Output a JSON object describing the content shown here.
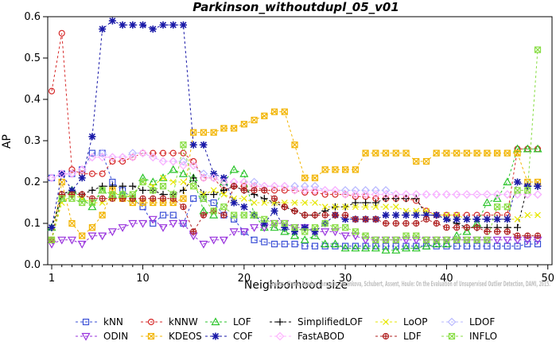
{
  "chart_data": {
    "type": "line",
    "title": "Parkinson_withoutdupl_05_v01",
    "xlabel": "Neighborhood size",
    "ylabel": "AP",
    "xlim": [
      0,
      50
    ],
    "ylim": [
      0,
      0.6
    ],
    "xticks": [
      "1",
      "10",
      "20",
      "30",
      "40",
      "50"
    ],
    "yticks": [
      "0.0",
      "0.1",
      "0.2",
      "0.3",
      "0.4",
      "0.5",
      "0.6"
    ],
    "grid": false,
    "legend_position": "bottom",
    "credit": "Campos, Zimek, Sander, Campello, Micenkova, Schubert, Assent, Houle: On the Evaluation of Unsupervised Outlier Detection, DAMI, 2015.",
    "series": [
      {
        "name": "kNN",
        "color": "#3a4fd6",
        "marker": "square",
        "values": [
          0.21,
          0.22,
          0.22,
          0.23,
          0.27,
          0.27,
          0.2,
          0.18,
          0.16,
          0.14,
          0.1,
          0.12,
          0.12,
          0.1,
          0.16,
          0.16,
          0.15,
          0.12,
          0.11,
          0.08,
          0.06,
          0.055,
          0.05,
          0.05,
          0.05,
          0.045,
          0.045,
          0.045,
          0.045,
          0.045,
          0.045,
          0.045,
          0.045,
          0.045,
          0.045,
          0.045,
          0.045,
          0.045,
          0.045,
          0.045,
          0.045,
          0.045,
          0.045,
          0.045,
          0.045,
          0.045,
          0.045,
          0.05,
          0.05
        ]
      },
      {
        "name": "kNNW",
        "color": "#d62a2a",
        "marker": "circle",
        "values": [
          0.42,
          0.56,
          0.23,
          0.22,
          0.22,
          0.22,
          0.25,
          0.25,
          0.26,
          0.27,
          0.27,
          0.27,
          0.27,
          0.27,
          0.25,
          0.21,
          0.21,
          0.18,
          0.19,
          0.19,
          0.19,
          0.18,
          0.18,
          0.18,
          0.18,
          0.175,
          0.175,
          0.17,
          0.17,
          0.17,
          0.165,
          0.165,
          0.16,
          0.16,
          0.16,
          0.16,
          0.155,
          0.13,
          0.12,
          0.12,
          0.12,
          0.12,
          0.12,
          0.12,
          0.12,
          0.12,
          0.28,
          0.28,
          0.28
        ]
      },
      {
        "name": "LOF",
        "color": "#2bc42b",
        "marker": "triangle",
        "values": [
          0.09,
          0.16,
          0.18,
          0.16,
          0.14,
          0.18,
          0.17,
          0.17,
          0.16,
          0.21,
          0.2,
          0.21,
          0.23,
          0.22,
          0.21,
          0.13,
          0.12,
          0.2,
          0.23,
          0.22,
          0.12,
          0.09,
          0.09,
          0.08,
          0.07,
          0.06,
          0.07,
          0.05,
          0.05,
          0.04,
          0.04,
          0.04,
          0.04,
          0.035,
          0.035,
          0.04,
          0.04,
          0.045,
          0.05,
          0.05,
          0.07,
          0.08,
          0.1,
          0.15,
          0.16,
          0.2,
          0.28,
          0.28,
          0.28
        ]
      },
      {
        "name": "SimplifiedLOF",
        "color": "#000000",
        "marker": "plus",
        "values": [
          0.09,
          0.17,
          0.18,
          0.17,
          0.18,
          0.19,
          0.19,
          0.19,
          0.19,
          0.18,
          0.18,
          0.17,
          0.17,
          0.18,
          0.21,
          0.17,
          0.17,
          0.18,
          0.19,
          0.18,
          0.17,
          0.16,
          0.15,
          0.14,
          0.13,
          0.12,
          0.12,
          0.13,
          0.14,
          0.14,
          0.15,
          0.15,
          0.15,
          0.16,
          0.16,
          0.16,
          0.16,
          0.12,
          0.12,
          0.11,
          0.1,
          0.09,
          0.09,
          0.09,
          0.09,
          0.09,
          0.09,
          0.19,
          0.19
        ]
      },
      {
        "name": "LoOP",
        "color": "#e6e600",
        "marker": "x",
        "values": [
          0.06,
          0.15,
          0.17,
          0.16,
          0.15,
          0.15,
          0.16,
          0.16,
          0.17,
          0.2,
          0.19,
          0.21,
          0.2,
          0.2,
          0.19,
          0.17,
          0.18,
          0.17,
          0.16,
          0.16,
          0.15,
          0.15,
          0.15,
          0.15,
          0.15,
          0.15,
          0.15,
          0.14,
          0.14,
          0.14,
          0.14,
          0.14,
          0.14,
          0.14,
          0.14,
          0.13,
          0.13,
          0.13,
          0.12,
          0.12,
          0.12,
          0.11,
          0.11,
          0.11,
          0.11,
          0.11,
          0.11,
          0.12,
          0.12
        ]
      },
      {
        "name": "LDOF",
        "color": "#b8b8ff",
        "marker": "diamond",
        "values": [
          0.21,
          0.22,
          0.22,
          0.23,
          0.26,
          0.27,
          0.26,
          0.26,
          0.27,
          0.27,
          0.26,
          0.25,
          0.25,
          0.25,
          0.24,
          0.22,
          0.21,
          0.2,
          0.2,
          0.2,
          0.2,
          0.19,
          0.19,
          0.19,
          0.19,
          0.19,
          0.19,
          0.18,
          0.18,
          0.18,
          0.18,
          0.18,
          0.18,
          0.18,
          0.17,
          0.17,
          0.17,
          0.17,
          0.17,
          0.17,
          0.17,
          0.17,
          0.17,
          0.17,
          0.17,
          0.17,
          0.17,
          0.17,
          0.17
        ]
      },
      {
        "name": "ODIN",
        "color": "#9933dd",
        "marker": "triangle-down",
        "values": [
          0.05,
          0.06,
          0.06,
          0.05,
          0.07,
          0.07,
          0.08,
          0.09,
          0.1,
          0.1,
          0.11,
          0.09,
          0.1,
          0.1,
          0.07,
          0.05,
          0.06,
          0.06,
          0.08,
          0.08,
          0.09,
          0.09,
          0.1,
          0.1,
          0.09,
          0.09,
          0.08,
          0.08,
          0.08,
          0.07,
          0.07,
          0.06,
          0.06,
          0.06,
          0.06,
          0.06,
          0.06,
          0.06,
          0.06,
          0.06,
          0.06,
          0.06,
          0.06,
          0.06,
          0.06,
          0.06,
          0.06,
          0.06,
          0.06
        ]
      },
      {
        "name": "KDEOS",
        "color": "#f2b400",
        "marker": "square-x",
        "values": [
          0.06,
          0.2,
          0.1,
          0.07,
          0.09,
          0.12,
          0.18,
          0.16,
          0.15,
          0.15,
          0.15,
          0.15,
          0.15,
          0.16,
          0.32,
          0.32,
          0.32,
          0.33,
          0.33,
          0.34,
          0.35,
          0.36,
          0.37,
          0.37,
          0.29,
          0.21,
          0.21,
          0.23,
          0.23,
          0.23,
          0.23,
          0.27,
          0.27,
          0.27,
          0.27,
          0.27,
          0.25,
          0.25,
          0.27,
          0.27,
          0.27,
          0.27,
          0.27,
          0.27,
          0.27,
          0.27,
          0.27,
          0.2,
          0.2
        ]
      },
      {
        "name": "COF",
        "color": "#1a1aa8",
        "marker": "star",
        "values": [
          0.09,
          0.22,
          0.18,
          0.21,
          0.31,
          0.57,
          0.59,
          0.58,
          0.58,
          0.58,
          0.57,
          0.58,
          0.58,
          0.58,
          0.29,
          0.29,
          0.22,
          0.21,
          0.15,
          0.14,
          0.12,
          0.1,
          0.13,
          0.09,
          0.08,
          0.09,
          0.08,
          0.1,
          0.12,
          0.11,
          0.11,
          0.11,
          0.11,
          0.12,
          0.12,
          0.12,
          0.12,
          0.12,
          0.12,
          0.11,
          0.11,
          0.11,
          0.11,
          0.11,
          0.11,
          0.11,
          0.2,
          0.19,
          0.19
        ]
      },
      {
        "name": "FastABOD",
        "color": "#ffb0ff",
        "marker": "diamond",
        "values": [
          0.21,
          0.22,
          0.22,
          0.23,
          0.26,
          0.26,
          0.26,
          0.26,
          0.26,
          0.27,
          0.26,
          0.25,
          0.25,
          0.24,
          0.24,
          0.21,
          0.21,
          0.2,
          0.2,
          0.2,
          0.19,
          0.19,
          0.19,
          0.19,
          0.18,
          0.18,
          0.18,
          0.18,
          0.18,
          0.17,
          0.17,
          0.17,
          0.17,
          0.17,
          0.17,
          0.17,
          0.17,
          0.17,
          0.17,
          0.17,
          0.17,
          0.17,
          0.17,
          0.17,
          0.17,
          0.17,
          0.17,
          0.17,
          0.17
        ]
      },
      {
        "name": "LDF",
        "color": "#b02020",
        "marker": "circle-plus",
        "values": [
          0.06,
          0.17,
          0.17,
          0.17,
          0.16,
          0.16,
          0.16,
          0.16,
          0.16,
          0.16,
          0.16,
          0.16,
          0.16,
          0.14,
          0.08,
          0.12,
          0.13,
          0.12,
          0.19,
          0.18,
          0.18,
          0.18,
          0.16,
          0.14,
          0.13,
          0.12,
          0.12,
          0.12,
          0.12,
          0.12,
          0.11,
          0.11,
          0.11,
          0.1,
          0.1,
          0.1,
          0.1,
          0.11,
          0.1,
          0.09,
          0.09,
          0.09,
          0.09,
          0.08,
          0.08,
          0.08,
          0.07,
          0.07,
          0.07
        ]
      },
      {
        "name": "INFLO",
        "color": "#88dd44",
        "marker": "square-x",
        "values": [
          0.06,
          0.16,
          0.16,
          0.15,
          0.15,
          0.18,
          0.17,
          0.17,
          0.17,
          0.2,
          0.18,
          0.19,
          0.17,
          0.29,
          0.19,
          0.16,
          0.13,
          0.14,
          0.12,
          0.12,
          0.12,
          0.11,
          0.1,
          0.1,
          0.09,
          0.08,
          0.09,
          0.1,
          0.09,
          0.09,
          0.08,
          0.07,
          0.06,
          0.06,
          0.06,
          0.07,
          0.07,
          0.06,
          0.06,
          0.06,
          0.06,
          0.06,
          0.06,
          0.06,
          0.14,
          0.14,
          0.18,
          0.18,
          0.52
        ]
      }
    ]
  }
}
